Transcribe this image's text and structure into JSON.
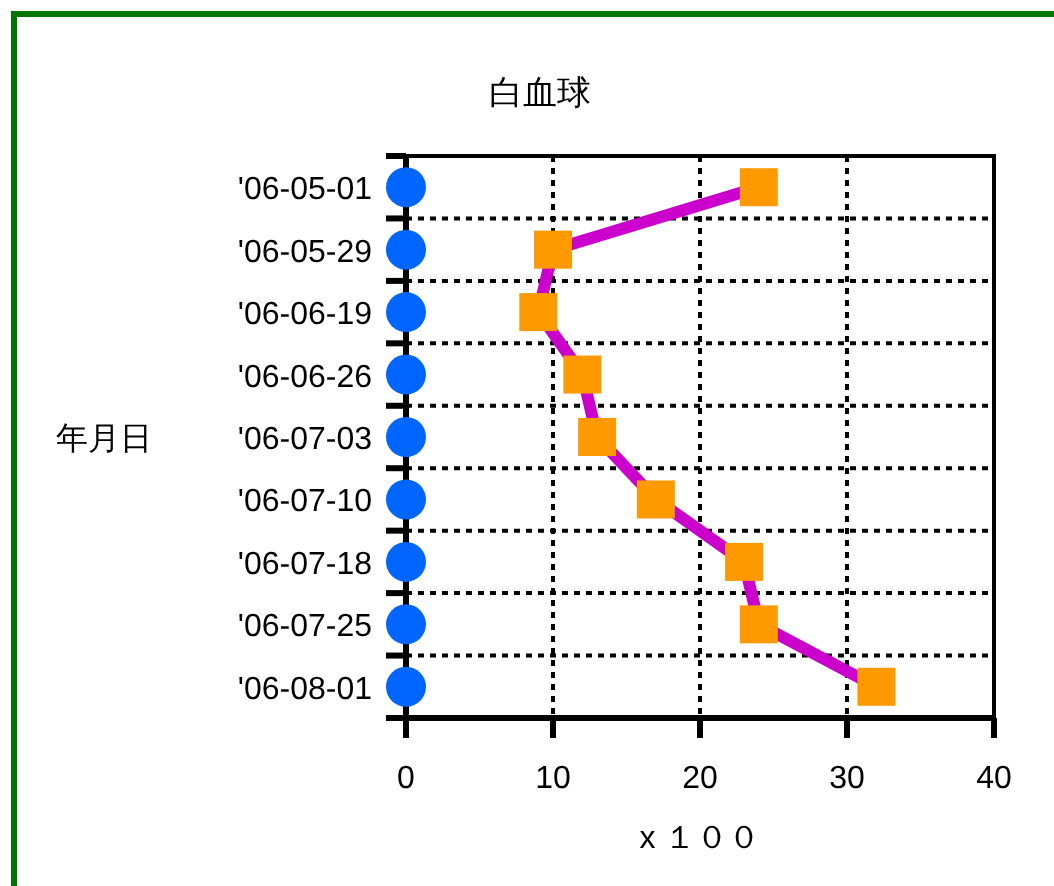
{
  "chart_data": {
    "type": "line",
    "orientation": "horizontal",
    "title": "白血球",
    "ylabel": "年月日",
    "xlabel": "x １００",
    "categories": [
      "'06-05-01",
      "'06-05-29",
      "'06-06-19",
      "'06-06-26",
      "'06-07-03",
      "'06-07-10",
      "'06-07-18",
      "'06-07-25",
      "'06-08-01"
    ],
    "series": [
      {
        "type": "scatter",
        "marker": "circle",
        "color": "#0066ff",
        "values": [
          0,
          0,
          0,
          0,
          0,
          0,
          0,
          0,
          0
        ]
      },
      {
        "marker": "square",
        "color": "#cc00cc",
        "colors": [
          "#ff9900",
          "#ff9900",
          "#ff9900",
          "#ff9900",
          "#ff9900",
          "#ff9900",
          "#ff9900",
          "#ff9900",
          "#ff9900"
        ],
        "values": [
          24,
          10,
          9,
          12,
          13,
          17,
          23,
          24,
          32
        ]
      }
    ],
    "xlim": [
      0,
      40
    ],
    "xticks": [
      0,
      10,
      20,
      30,
      40
    ],
    "grid": true,
    "line_style": "solid"
  }
}
